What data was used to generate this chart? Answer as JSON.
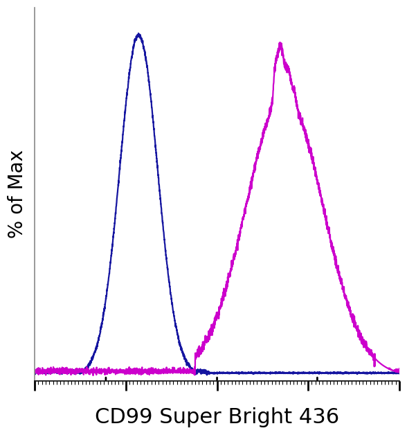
{
  "title": "",
  "xlabel": "CD99 Super Bright 436",
  "ylabel": "% of Max",
  "xlabel_fontsize": 22,
  "ylabel_fontsize": 20,
  "blue_color": "#1515a0",
  "magenta_color": "#cc00cc",
  "xlim": [
    0,
    1
  ],
  "ylim": [
    -0.015,
    1.08
  ],
  "background_color": "#ffffff",
  "linewidth": 1.6,
  "spine_color": "#888888"
}
